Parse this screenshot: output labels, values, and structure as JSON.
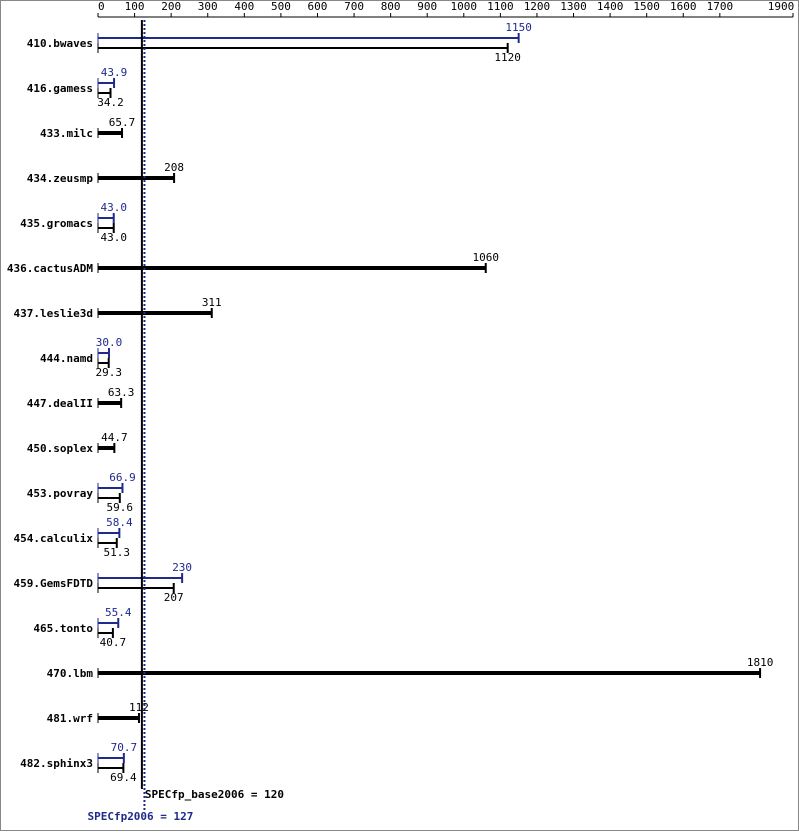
{
  "chart_data": {
    "type": "bar",
    "categories": [
      "410.bwaves",
      "416.gamess",
      "433.milc",
      "434.zeusmp",
      "435.gromacs",
      "436.cactusADM",
      "437.leslie3d",
      "444.namd",
      "447.dealII",
      "450.soplex",
      "453.povray",
      "454.calculix",
      "459.GemsFDTD",
      "465.tonto",
      "470.lbm",
      "481.wrf",
      "482.sphinx3"
    ],
    "series": [
      {
        "name": "SPECfp_base2006",
        "color": "#000000",
        "values": [
          1120,
          34.2,
          65.7,
          208,
          43.0,
          1060,
          311,
          29.3,
          63.3,
          44.7,
          59.6,
          51.3,
          207,
          40.7,
          1810,
          112,
          69.4
        ],
        "value_labels": [
          "1120",
          "34.2",
          "65.7",
          "208",
          "43.0",
          "1060",
          "311",
          "29.3",
          "63.3",
          "44.7",
          "59.6",
          "51.3",
          "207",
          "40.7",
          "1810",
          "112",
          "69.4"
        ]
      },
      {
        "name": "SPECfp2006",
        "color": "#1f2a8c",
        "values": [
          1150,
          43.9,
          null,
          null,
          43.0,
          null,
          null,
          30.0,
          null,
          null,
          66.9,
          58.4,
          230,
          55.4,
          null,
          null,
          70.7
        ],
        "value_labels": [
          "1150",
          "43.9",
          null,
          null,
          "43.0",
          null,
          null,
          "30.0",
          null,
          null,
          "66.9",
          "58.4",
          "230",
          "55.4",
          null,
          null,
          "70.7"
        ]
      }
    ],
    "xlim": [
      0,
      1900
    ],
    "xticks": [
      0,
      100,
      200,
      300,
      400,
      500,
      600,
      700,
      800,
      900,
      1000,
      1100,
      1200,
      1300,
      1400,
      1500,
      1600,
      1700,
      1900
    ],
    "reference_lines": [
      {
        "label": "SPECfp_base2006 = 120",
        "value": 120,
        "color": "#000000"
      },
      {
        "label": "SPECfp2006 = 127",
        "value": 127,
        "color": "#1f2a8c"
      }
    ]
  }
}
